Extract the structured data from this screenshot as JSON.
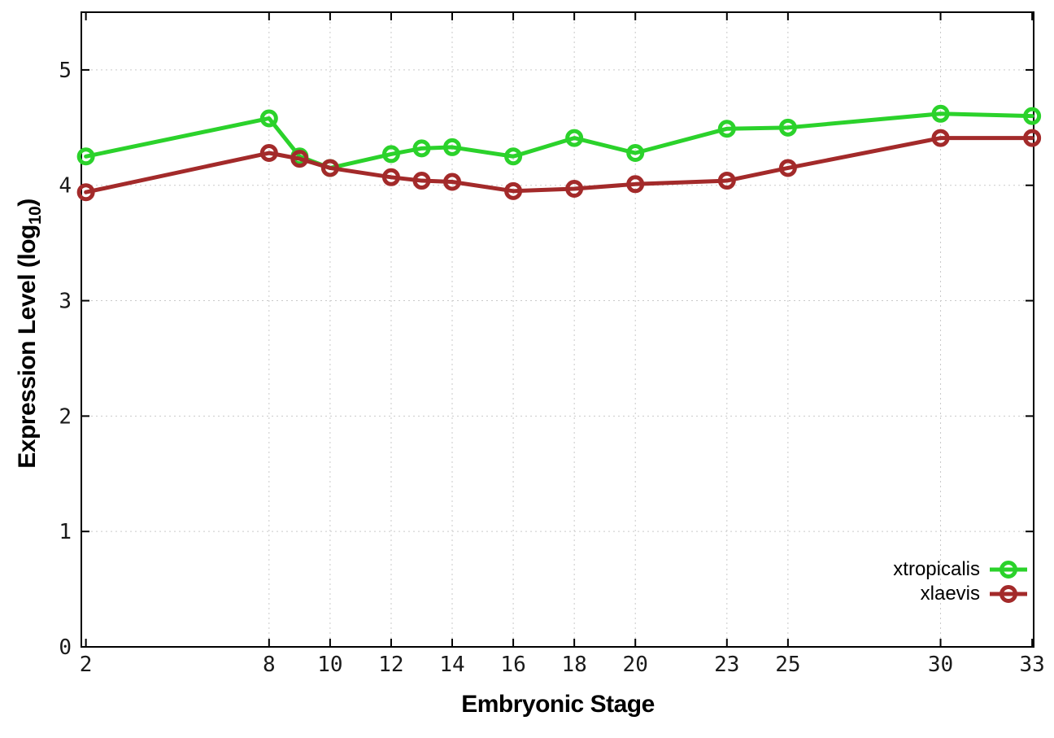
{
  "chart_data": {
    "type": "line",
    "title": "",
    "xlabel": "Embryonic Stage",
    "ylabel": "Expression Level (log10)",
    "ylabel_parts": {
      "main": "Expression Level (log",
      "sub": "10",
      "close": ")"
    },
    "x": [
      2,
      8,
      9,
      10,
      12,
      13,
      14,
      16,
      18,
      20,
      23,
      25,
      30,
      33
    ],
    "series": [
      {
        "name": "xtropicalis",
        "color": "#2bd22b",
        "values": [
          4.25,
          4.58,
          4.25,
          4.15,
          4.27,
          4.32,
          4.33,
          4.25,
          4.41,
          4.28,
          4.49,
          4.5,
          4.62,
          4.6
        ]
      },
      {
        "name": "xlaevis",
        "color": "#a32a2a",
        "values": [
          3.94,
          4.28,
          4.23,
          4.15,
          4.07,
          4.04,
          4.03,
          3.95,
          3.97,
          4.01,
          4.04,
          4.15,
          4.41,
          4.41
        ]
      }
    ],
    "xticks": [
      2,
      8,
      10,
      12,
      14,
      16,
      18,
      20,
      23,
      25,
      30,
      33
    ],
    "yticks": [
      0,
      1,
      2,
      3,
      4,
      5
    ],
    "xlim": [
      1.85,
      33.05
    ],
    "ylim": [
      0,
      5.5
    ],
    "grid": true,
    "legend_position": "inside-bottom-right",
    "style": {
      "background": "#ffffff",
      "axis_color": "#000000",
      "grid_color": "#c9c9c9",
      "tick_label_color": "#1a1a1a",
      "line_width": 5,
      "marker_radius": 8.5,
      "marker_stroke": 5
    }
  }
}
